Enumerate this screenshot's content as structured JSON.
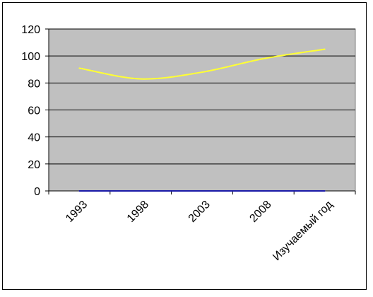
{
  "chart_data": {
    "type": "line",
    "categories": [
      "1993",
      "1998",
      "2003",
      "2008",
      "Изучаемый год"
    ],
    "series": [
      {
        "values": [
          91,
          83,
          88,
          98,
          105
        ],
        "color": "#ffff33"
      },
      {
        "values": [
          0,
          0,
          0,
          0,
          0
        ],
        "color": "#1a1aa8"
      }
    ],
    "ylim": [
      0,
      120
    ],
    "yticks": [
      0,
      20,
      40,
      60,
      80,
      100,
      120
    ],
    "grid": true,
    "plot_background": "#c0c0c0",
    "gridline_color": "#000000",
    "legend": "none"
  }
}
